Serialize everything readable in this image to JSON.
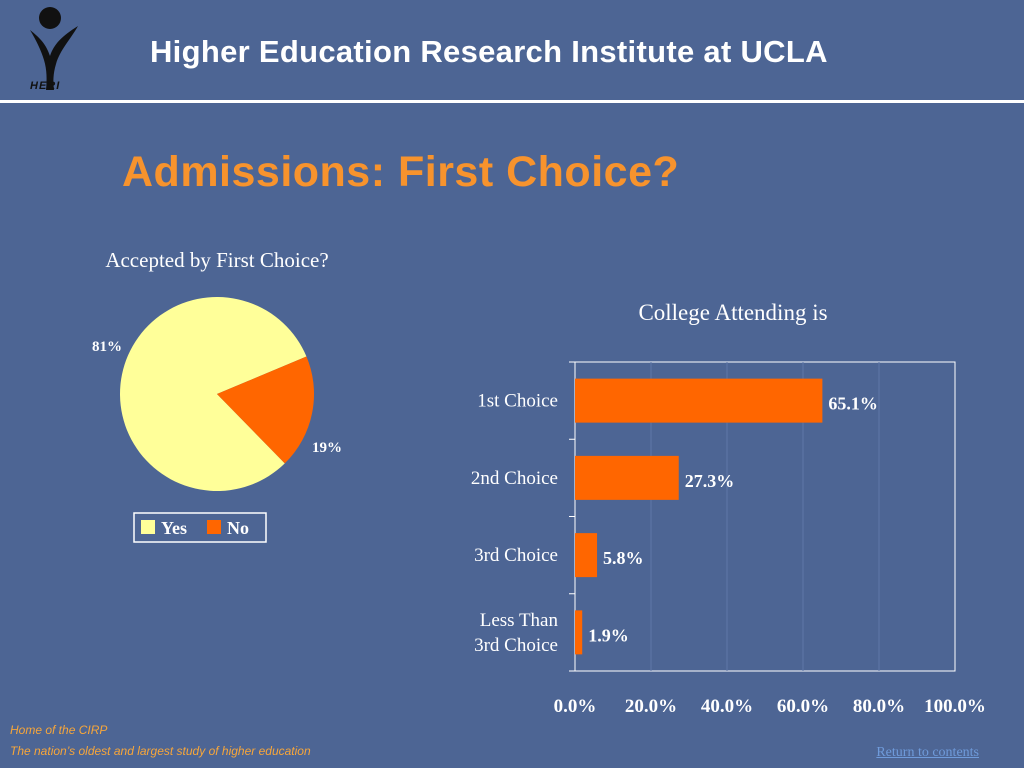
{
  "header": {
    "title": "Higher Education Research Institute at UCLA",
    "logo_text": "HERI"
  },
  "slide": {
    "title": "Admissions: First Choice?"
  },
  "chart_data": [
    {
      "type": "pie",
      "title": "Accepted by First Choice?",
      "labels": [
        "Yes",
        "No"
      ],
      "values": [
        81,
        19
      ],
      "value_labels": [
        "81%",
        "19%"
      ],
      "colors": [
        "#FFFF99",
        "#FF6600"
      ],
      "legend": "bottom"
    },
    {
      "type": "bar",
      "orientation": "horizontal",
      "title": "College Attending is",
      "categories": [
        "1st Choice",
        "2nd Choice",
        "3rd Choice",
        "Less Than 3rd Choice"
      ],
      "values": [
        65.1,
        27.3,
        5.8,
        1.9
      ],
      "value_labels": [
        "65.1%",
        "27.3%",
        "5.8%",
        "1.9%"
      ],
      "xlim": [
        0,
        100
      ],
      "x_ticks": [
        "0.0%",
        "20.0%",
        "40.0%",
        "60.0%",
        "80.0%",
        "100.0%"
      ],
      "color": "#FF6600",
      "grid": true
    }
  ],
  "footer": {
    "line1": "Home of the CIRP",
    "line2": "The nation’s oldest and largest study of higher education",
    "return_link": "Return to contents"
  },
  "colors": {
    "background": "#4D6594",
    "title_orange": "#F7932D",
    "bar_orange": "#FF6600",
    "pie_yellow": "#FFFF99"
  }
}
